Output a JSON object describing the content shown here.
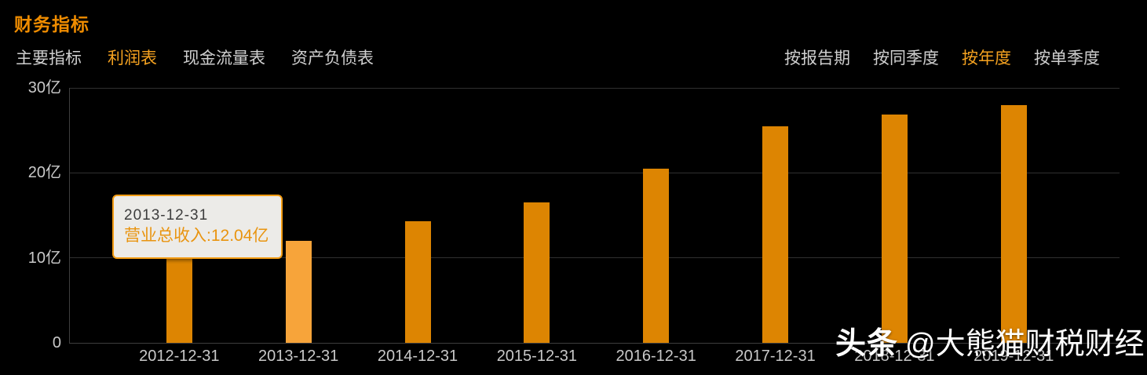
{
  "header": {
    "title": "财务指标"
  },
  "tabs": {
    "left": [
      {
        "label": "主要指标",
        "active": false
      },
      {
        "label": "利润表",
        "active": true
      },
      {
        "label": "现金流量表",
        "active": false
      },
      {
        "label": "资产负债表",
        "active": false
      }
    ],
    "right": [
      {
        "label": "按报告期",
        "active": false
      },
      {
        "label": "按同季度",
        "active": false
      },
      {
        "label": "按年度",
        "active": true
      },
      {
        "label": "按单季度",
        "active": false
      }
    ]
  },
  "tooltip": {
    "date": "2013-12-31",
    "text": "营业总收入:12.04亿"
  },
  "watermark": {
    "brand": "头条",
    "handle": "@大熊猫财税财经"
  },
  "chart_data": {
    "type": "bar",
    "series_name": "营业总收入",
    "unit": "亿",
    "categories": [
      "2012-12-31",
      "2013-12-31",
      "2014-12-31",
      "2015-12-31",
      "2016-12-31",
      "2017-12-31",
      "2018-12-31",
      "2019-12-31"
    ],
    "values": [
      10.4,
      12.04,
      14.3,
      16.5,
      20.5,
      25.5,
      26.9,
      28.0
    ],
    "highlighted_index": 1,
    "ylim": [
      0,
      30
    ],
    "yticks": [
      {
        "value": 0,
        "label": "0"
      },
      {
        "value": 10,
        "label": "10亿"
      },
      {
        "value": 20,
        "label": "20亿"
      },
      {
        "value": 30,
        "label": "30亿"
      }
    ],
    "grid": true,
    "legend_position": "none",
    "colors": {
      "bar": "#dd8502",
      "bar_highlight": "#f7a43a"
    }
  }
}
